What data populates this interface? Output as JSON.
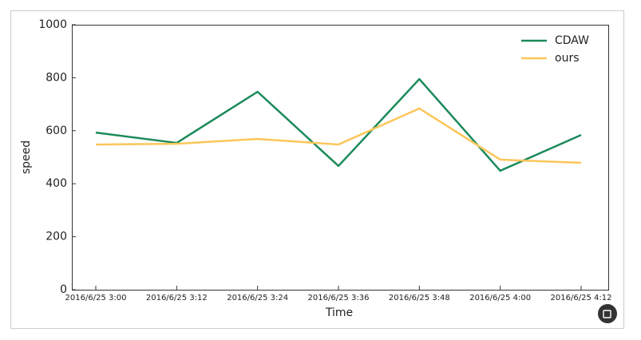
{
  "chart_data": {
    "type": "line",
    "x_label": "Time",
    "y_label": "speed",
    "categories": [
      "2016/6/25 3:00",
      "2016/6/25 3:12",
      "2016/6/25 3:24",
      "2016/6/25 3:36",
      "2016/6/25 3:48",
      "2016/6/25 4:00",
      "2016/6/25 4:12"
    ],
    "series": [
      {
        "name": "CDAW",
        "color": "#1b8a5a",
        "values": [
          593,
          554,
          747,
          467,
          795,
          449,
          584
        ]
      },
      {
        "name": "ours",
        "color": "#fdc65a",
        "values": [
          548,
          551,
          569,
          548,
          684,
          491,
          479
        ]
      }
    ],
    "ylim": [
      0,
      1000
    ],
    "yticks": [
      0,
      200,
      400,
      600,
      800,
      1000
    ],
    "grid": false,
    "legend": "upper right"
  }
}
